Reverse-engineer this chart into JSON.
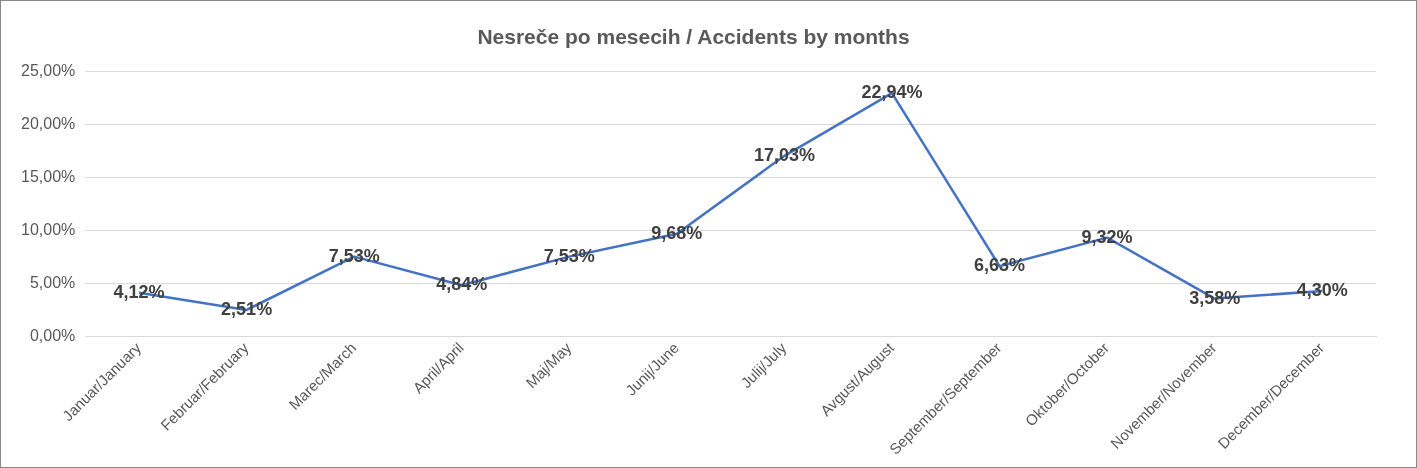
{
  "chart_data": {
    "type": "line",
    "title": "Nesreče po mesecih / Accidents by months",
    "categories": [
      "Januar/January",
      "Februar/February",
      "Marec/March",
      "April/April",
      "Maj/May",
      "Junij/June",
      "Julij/July",
      "Avgust/August",
      "September/September",
      "Oktober/October",
      "November/November",
      "December/December"
    ],
    "series": [
      {
        "color": "#4472c4",
        "values": [
          4.12,
          2.51,
          7.53,
          4.84,
          7.53,
          9.68,
          17.03,
          22.94,
          6.63,
          9.32,
          3.58,
          4.3
        ],
        "value_labels": [
          "4,12%",
          "2,51%",
          "7,53%",
          "4,84%",
          "7,53%",
          "9,68%",
          "17,03%",
          "22,94%",
          "6,63%",
          "9,32%",
          "3,58%",
          "4,30%"
        ]
      }
    ],
    "ylim": [
      0,
      25
    ],
    "yticks": [
      {
        "value": 0,
        "label": "0,00%"
      },
      {
        "value": 5,
        "label": "5,00%"
      },
      {
        "value": 10,
        "label": "10,00%"
      },
      {
        "value": 15,
        "label": "15,00%"
      },
      {
        "value": 20,
        "label": "20,00%"
      },
      {
        "value": 25,
        "label": "25,00%"
      }
    ],
    "grid": "y",
    "legend": false,
    "marker": "none",
    "line_style": "solid"
  }
}
